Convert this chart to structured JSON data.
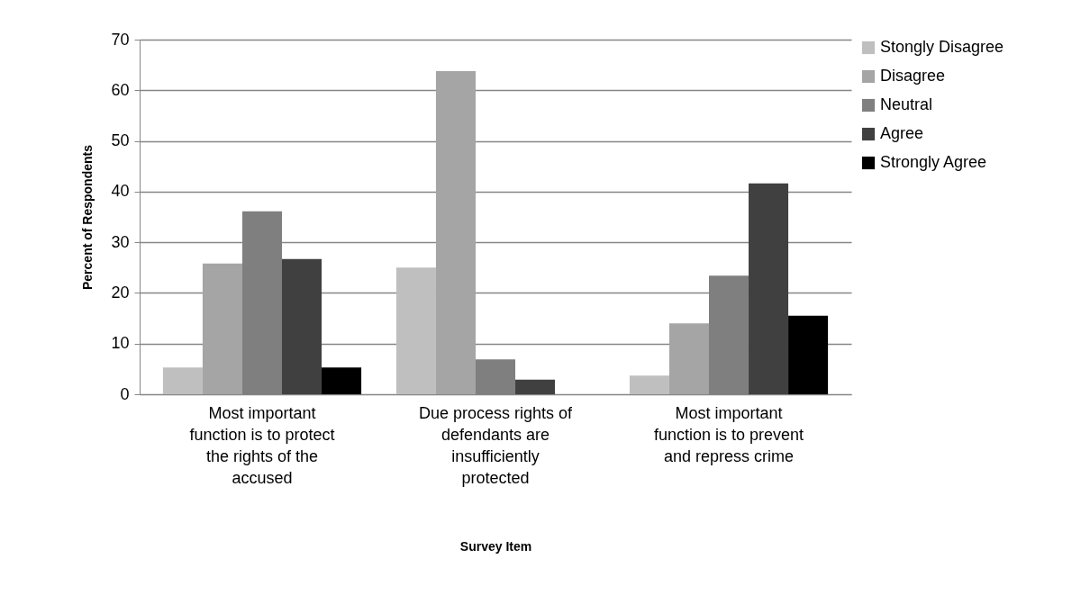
{
  "chart_data": {
    "type": "bar",
    "xlabel": "Survey Item",
    "ylabel": "Percent of Respondents",
    "categories": [
      "Most important function is to protect the rights of the accused",
      "Due process rights of defendants are insufficiently protected",
      "Most important function is to prevent and repress crime"
    ],
    "series": [
      {
        "name": "Stongly Disagree",
        "color": "#bfbfbf",
        "values": [
          5.3,
          25.0,
          3.7
        ]
      },
      {
        "name": "Disagree",
        "color": "#a5a5a5",
        "values": [
          25.8,
          63.8,
          14.0
        ]
      },
      {
        "name": "Neutral",
        "color": "#7f7f7f",
        "values": [
          36.1,
          6.9,
          23.4
        ]
      },
      {
        "name": "Agree",
        "color": "#404040",
        "values": [
          26.7,
          2.9,
          41.6
        ]
      },
      {
        "name": "Strongly Agree",
        "color": "#000000",
        "values": [
          5.3,
          0,
          15.5
        ]
      }
    ],
    "ylim": [
      0,
      70
    ],
    "yticks": [
      0,
      10,
      20,
      30,
      40,
      50,
      60,
      70
    ],
    "grid": "y",
    "legend": "right"
  }
}
